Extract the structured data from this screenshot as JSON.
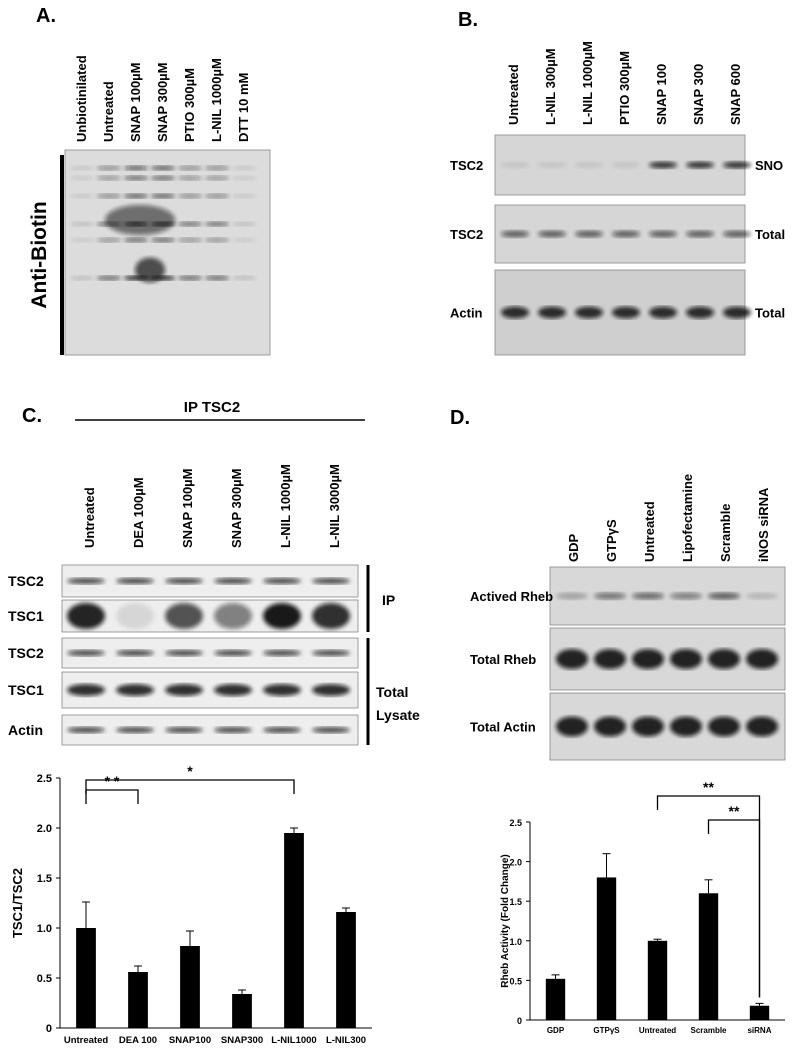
{
  "panels": [
    {
      "label": "A.",
      "lanes": [
        "Unbiotinilated",
        "Untreated",
        "SNAP 100µM",
        "SNAP 300µM",
        "PTIO 300µM",
        "L-NIL 1000µM",
        "DTT 10 mM"
      ],
      "side_label": "Anti-Biotin"
    },
    {
      "label": "B.",
      "lanes": [
        "Untreated",
        "L-NIL 300µM",
        "L-NIL 1000µM",
        "PTIO  300µM",
        "SNAP 100",
        "SNAP 300",
        "SNAP 600"
      ],
      "rows": [
        {
          "left": "TSC2",
          "right": "SNO"
        },
        {
          "left": "TSC2",
          "right": "Total"
        },
        {
          "left": "Actin",
          "right": "Total"
        }
      ]
    },
    {
      "label": "C.",
      "header": "IP TSC2",
      "lanes": [
        "Untreated",
        "DEA 100µM",
        "SNAP 100µM",
        "SNAP 300µM",
        "L-NIL 1000µM",
        "L-NIL 3000µM"
      ],
      "rows": [
        "TSC2",
        "TSC1",
        "TSC2",
        "TSC1",
        "Actin"
      ],
      "groups": [
        [
          "IP"
        ],
        [
          "Total",
          "Lysate"
        ]
      ]
    },
    {
      "label": "D.",
      "lanes": [
        "GDP",
        "GTPγS",
        "Untreated",
        "Lipofectamine",
        "Scramble",
        "iNOS siRNA"
      ],
      "rows": [
        "Actived Rheb",
        "Total Rheb",
        "Total Actin"
      ]
    }
  ],
  "chart_data": [
    {
      "type": "bar",
      "y_label": "TSC1/TSC2",
      "categories": [
        "Untreated",
        "DEA 100",
        "SNAP100",
        "SNAP300",
        "L-NIL1000",
        "L-NIL300"
      ],
      "values": [
        1.0,
        0.56,
        0.82,
        0.34,
        1.95,
        1.16
      ],
      "errors": [
        0.26,
        0.06,
        0.15,
        0.04,
        0.05,
        0.04
      ],
      "color": "#000000",
      "ylim": [
        0,
        2.5
      ],
      "yticks": [
        0,
        0.5,
        {
          "value": 1,
          "label": "1.0"
        },
        1.5,
        {
          "value": 2,
          "label": "2.0"
        },
        2.5
      ],
      "annotations": [
        {
          "text": "* *",
          "from": "Untreated",
          "to": "DEA 100"
        },
        {
          "text": "*",
          "from": "Untreated",
          "to": "L-NIL1000"
        }
      ]
    },
    {
      "type": "bar",
      "y_label": "Rheb Activity (Fold Change)",
      "categories": [
        "GDP",
        "GTPγS",
        "Untreated",
        "Scramble",
        "siRNA"
      ],
      "values": [
        0.52,
        1.8,
        1.0,
        1.6,
        0.18
      ],
      "errors": [
        0.05,
        0.3,
        0.02,
        0.17,
        0.03
      ],
      "color": "#000000",
      "ylim": [
        0,
        2.5
      ],
      "yticks": [
        0,
        0.5,
        {
          "value": 1,
          "label": "1.0"
        },
        1.5,
        {
          "value": 2,
          "label": "2.0"
        },
        2.5
      ],
      "annotations": [
        {
          "text": "**",
          "from": "Untreated",
          "to": "siRNA"
        },
        {
          "text": "**",
          "from": "Scramble",
          "to": "siRNA"
        }
      ]
    }
  ]
}
